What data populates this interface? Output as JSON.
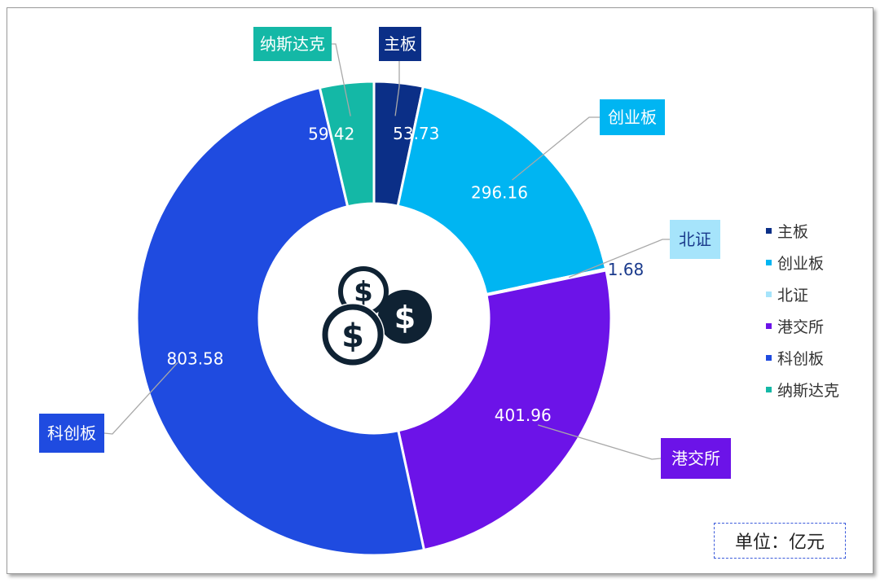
{
  "chart_data": {
    "type": "pie",
    "subtype": "donut",
    "slices": [
      {
        "name": "主板",
        "value": 53.73,
        "value_label": "53.73",
        "color": "#0b2f87"
      },
      {
        "name": "创业板",
        "value": 296.16,
        "value_label": "296.16",
        "color": "#00b5f2"
      },
      {
        "name": "北证",
        "value": 1.68,
        "value_label": "1.68",
        "color": "#a6e4fb"
      },
      {
        "name": "港交所",
        "value": 401.96,
        "value_label": "401.96",
        "color": "#6c13e8"
      },
      {
        "name": "科创板",
        "value": 803.58,
        "value_label": "803.58",
        "color": "#1f4be0"
      },
      {
        "name": "纳斯达克",
        "value": 59.42,
        "value_label": "59.42",
        "color": "#14b8a6"
      }
    ],
    "legend_position": "right",
    "center_icon": "dollar-coins-icon"
  },
  "unit_label": "单位：亿元"
}
